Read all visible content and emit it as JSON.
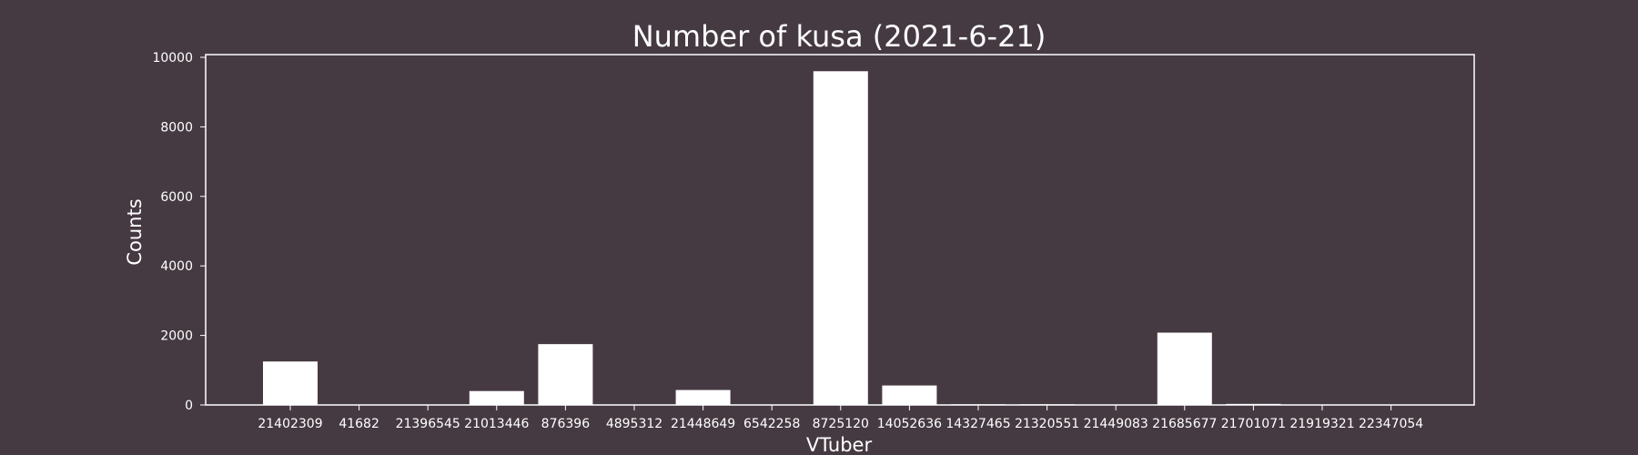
{
  "colors": {
    "background": "#463a42",
    "bar": "#ffffff",
    "axis": "#ffffff",
    "text": "#ffffff"
  },
  "chart_data": {
    "type": "bar",
    "title": "Number of kusa (2021-6-21)",
    "xlabel": "VTuber",
    "ylabel": "Counts",
    "ylim": [
      0,
      10000
    ],
    "yticks": [
      0,
      2000,
      4000,
      6000,
      8000,
      10000
    ],
    "grid": false,
    "legend": "none",
    "categories": [
      "21402309",
      "41682",
      "21396545",
      "21013446",
      "876396",
      "4895312",
      "21448649",
      "6542258",
      "8725120",
      "14052636",
      "14327465",
      "21320551",
      "21449083",
      "21685677",
      "21701071",
      "21919321",
      "22347054"
    ],
    "values": [
      1250,
      0,
      0,
      400,
      1750,
      0,
      430,
      0,
      9600,
      560,
      20,
      20,
      0,
      2080,
      30,
      0,
      0
    ]
  }
}
